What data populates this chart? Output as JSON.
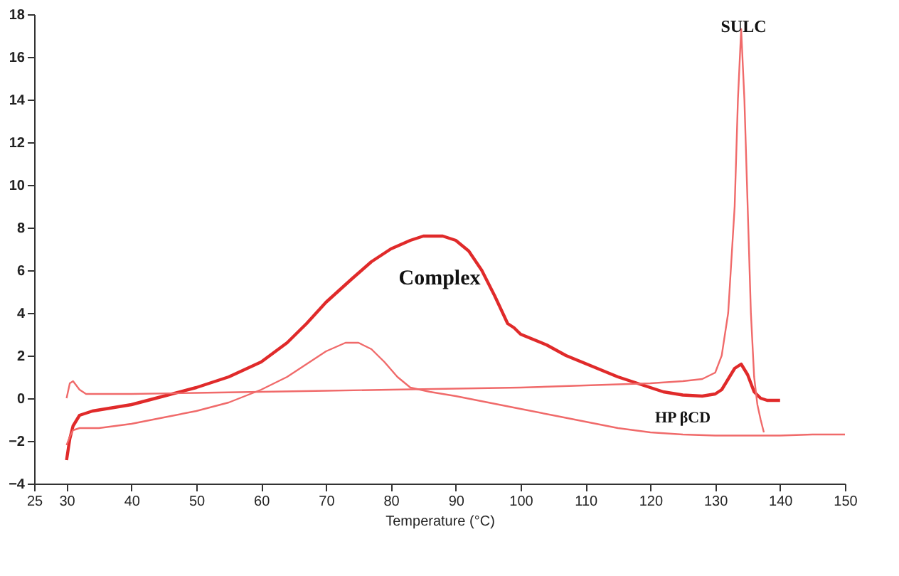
{
  "chart_data": {
    "type": "line",
    "xlabel": "Temperature (°C)",
    "xlim": [
      25,
      150
    ],
    "xticks": [
      25,
      30,
      40,
      50,
      60,
      70,
      80,
      90,
      100,
      110,
      120,
      130,
      140,
      150
    ],
    "ylim": [
      -4,
      18
    ],
    "yticks": [
      -4,
      -2,
      0,
      2,
      4,
      6,
      8,
      10,
      12,
      14,
      16,
      18
    ],
    "grid": false,
    "marker": "none",
    "line_style": "solid",
    "series": [
      {
        "color": "#e02a2a",
        "x": [
          30,
          30.5,
          31,
          32,
          34,
          40,
          45,
          50,
          55,
          60,
          64,
          67,
          70,
          74,
          77,
          80,
          83,
          85,
          88,
          90,
          92,
          94,
          96,
          98,
          99,
          100,
          104,
          107,
          111,
          115,
          119,
          122,
          125,
          128,
          130,
          131,
          132,
          133,
          134,
          135,
          136,
          137,
          138,
          140
        ],
        "values": [
          -2.9,
          -1.9,
          -1.3,
          -0.8,
          -0.6,
          -0.3,
          0.1,
          0.5,
          1.0,
          1.7,
          2.6,
          3.5,
          4.5,
          5.6,
          6.4,
          7.0,
          7.4,
          7.6,
          7.6,
          7.4,
          6.9,
          6.0,
          4.8,
          3.5,
          3.3,
          3.0,
          2.5,
          2.0,
          1.5,
          1.0,
          0.6,
          0.3,
          0.15,
          0.1,
          0.2,
          0.4,
          0.9,
          1.4,
          1.6,
          1.1,
          0.3,
          0,
          -0.1,
          -0.1
        ]
      },
      {
        "color": "#f06a6a",
        "x": [
          30,
          30.5,
          31,
          32,
          35,
          40,
          45,
          50,
          55,
          60,
          64,
          67,
          70,
          73,
          75,
          77,
          79,
          81,
          83,
          86,
          90,
          95,
          100,
          105,
          110,
          115,
          120,
          125,
          130,
          135,
          140,
          145,
          150
        ],
        "values": [
          -2.2,
          -1.8,
          -1.5,
          -1.4,
          -1.4,
          -1.2,
          -0.9,
          -0.6,
          -0.2,
          0.4,
          1.0,
          1.6,
          2.2,
          2.6,
          2.6,
          2.3,
          1.7,
          1.0,
          0.5,
          0.3,
          0.1,
          -0.2,
          -0.5,
          -0.8,
          -1.1,
          -1.4,
          -1.6,
          -1.7,
          -1.75,
          -1.75,
          -1.75,
          -1.7,
          -1.7
        ]
      },
      {
        "color": "#f06a6a",
        "x": [
          30,
          30.5,
          31,
          32,
          33,
          35,
          40,
          50,
          60,
          70,
          80,
          90,
          100,
          110,
          120,
          125,
          128,
          130,
          131,
          132,
          133,
          133.5,
          134,
          134.5,
          135,
          135.5,
          136,
          136.5,
          137,
          137.5
        ],
        "values": [
          0,
          0.7,
          0.8,
          0.4,
          0.2,
          0.2,
          0.2,
          0.25,
          0.3,
          0.35,
          0.4,
          0.45,
          0.5,
          0.6,
          0.7,
          0.8,
          0.9,
          1.2,
          2.0,
          4.0,
          9.0,
          14.0,
          17.3,
          14.0,
          9.0,
          4.0,
          1.0,
          -0.3,
          -1.0,
          -1.6
        ]
      }
    ],
    "annotations": [
      "Complex",
      "HP βCD",
      "SULC"
    ]
  }
}
